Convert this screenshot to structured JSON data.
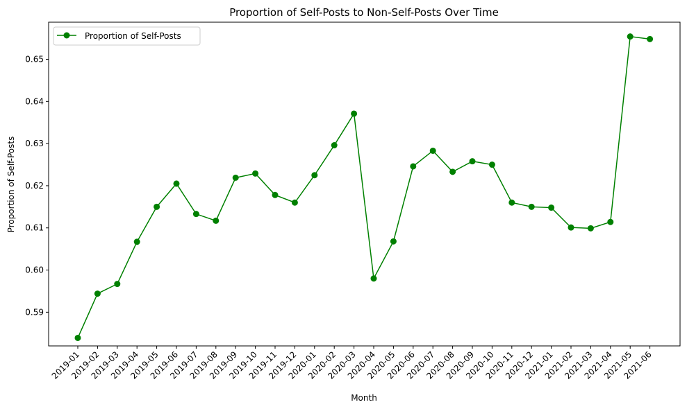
{
  "chart_data": {
    "type": "line",
    "title": "Proportion of Self-Posts to Non-Self-Posts Over Time",
    "xlabel": "Month",
    "ylabel": "Proportion of Self-Posts",
    "categories": [
      "2019-01",
      "2019-02",
      "2019-03",
      "2019-04",
      "2019-05",
      "2019-06",
      "2019-07",
      "2019-08",
      "2019-09",
      "2019-10",
      "2019-11",
      "2019-12",
      "2020-01",
      "2020-02",
      "2020-03",
      "2020-04",
      "2020-05",
      "2020-06",
      "2020-07",
      "2020-08",
      "2020-09",
      "2020-10",
      "2020-11",
      "2020-12",
      "2021-01",
      "2021-02",
      "2021-03",
      "2021-04",
      "2021-05",
      "2021-06"
    ],
    "series": [
      {
        "name": "Proportion of Self-Posts",
        "color": "#008000",
        "marker": "circle",
        "values": [
          0.5839,
          0.5944,
          0.5967,
          0.6067,
          0.615,
          0.6205,
          0.6133,
          0.6117,
          0.6219,
          0.6229,
          0.6178,
          0.616,
          0.6225,
          0.6296,
          0.6371,
          0.598,
          0.6068,
          0.6246,
          0.6283,
          0.6233,
          0.6258,
          0.625,
          0.616,
          0.615,
          0.6148,
          0.6101,
          0.6099,
          0.6114,
          0.6554,
          0.6548
        ]
      }
    ],
    "yticks": [
      "0.59",
      "0.60",
      "0.61",
      "0.62",
      "0.63",
      "0.64",
      "0.65"
    ],
    "ylim": [
      0.582,
      0.6588
    ],
    "grid": false,
    "legend": "top-left"
  }
}
